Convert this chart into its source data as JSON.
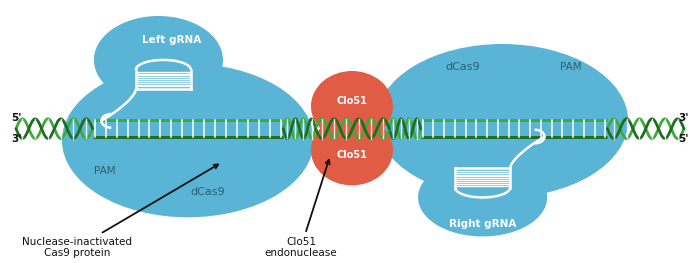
{
  "bg_color": "#ffffff",
  "blue_light": "#5ab4d6",
  "blue_dark_text": "#2a6070",
  "green_dna": "#3daa3d",
  "green_dark": "#1e6e1e",
  "red_clo": "#e05c45",
  "white": "#ffffff",
  "text_dark": "#111111",
  "left_gRNA_label": "Left gRNA",
  "right_gRNA_label": "Right gRNA",
  "dCas9_left_label": "dCas9",
  "dCas9_right_label": "dCas9",
  "PAM_left_label": "PAM",
  "PAM_right_label": "PAM",
  "Clo51_top_label": "Clo51",
  "Clo51_bot_label": "Clo51",
  "annotation1": "Nuclease-inactivated\nCas9 protein",
  "annotation2": "Clo51\nendonuclease",
  "five_prime_left": "5'",
  "three_prime_left": "3'",
  "three_prime_right": "3'",
  "five_prime_right": "5'"
}
